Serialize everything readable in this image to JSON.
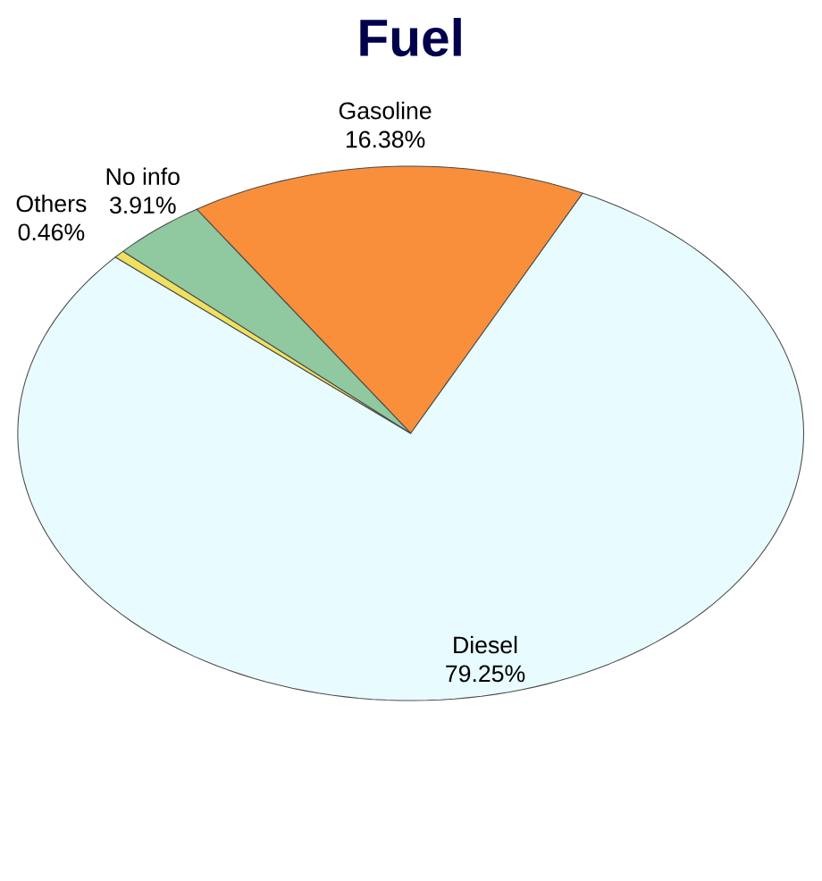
{
  "chart_data": {
    "type": "pie",
    "title": "Fuel",
    "categories": [
      "Gasoline",
      "Diesel",
      "Others",
      "No info"
    ],
    "values": [
      16.38,
      79.25,
      0.46,
      3.91
    ],
    "value_labels": [
      "16.38%",
      "79.25%",
      "0.46%",
      "3.91%"
    ],
    "colors": [
      "#f98f3b",
      "#e8fcff",
      "#f0e060",
      "#90c8a0"
    ]
  }
}
